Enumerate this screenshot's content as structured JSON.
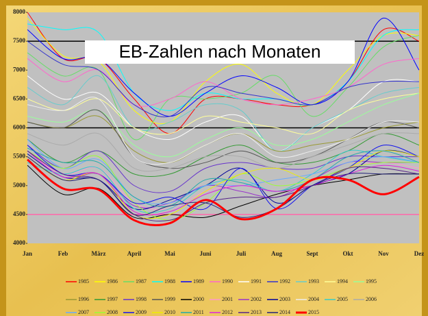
{
  "chart_data": {
    "type": "line",
    "title": "EB-Zahlen nach Monaten",
    "categories": [
      "Jan",
      "Feb",
      "März",
      "April",
      "Mai",
      "Juni",
      "Juli",
      "Aug",
      "Sept",
      "Okt",
      "Nov",
      "Dez"
    ],
    "ylim": [
      4000,
      8000
    ],
    "yticks": [
      4000,
      4500,
      5000,
      5500,
      6000,
      6500,
      7000,
      7500,
      8000
    ],
    "reference_lines": [
      {
        "value": 7500,
        "color": "#000000"
      },
      {
        "value": 6000,
        "color": "#000000"
      },
      {
        "value": 4500,
        "color": "#ff66aa"
      }
    ],
    "series": [
      {
        "name": "1985",
        "color": "#ff0000",
        "values": [
          8000,
          7200,
          7200,
          6500,
          5900,
          6500,
          6500,
          6400,
          6400,
          6800,
          7700,
          7500
        ]
      },
      {
        "name": "1986",
        "color": "#ffff00",
        "values": [
          7900,
          7250,
          7150,
          6300,
          6100,
          6800,
          7100,
          6600,
          6400,
          7000,
          7600,
          7600
        ]
      },
      {
        "name": "1987",
        "color": "#66dd66",
        "values": [
          7300,
          6900,
          7000,
          5800,
          6500,
          6500,
          6600,
          6900,
          6200,
          6700,
          7400,
          7600
        ]
      },
      {
        "name": "1988",
        "color": "#00ffff",
        "values": [
          7800,
          7700,
          7650,
          6600,
          6300,
          6600,
          6500,
          6500,
          6400,
          6800,
          7600,
          7700
        ]
      },
      {
        "name": "1989",
        "color": "#0000ff",
        "values": [
          7700,
          7200,
          7200,
          6600,
          6200,
          6600,
          6900,
          6700,
          6400,
          6800,
          7900,
          7000
        ]
      },
      {
        "name": "1990",
        "color": "#ff66cc",
        "values": [
          7200,
          6800,
          7000,
          6400,
          6500,
          6800,
          6500,
          6400,
          6500,
          6700,
          7100,
          7200
        ]
      },
      {
        "name": "1991",
        "color": "#ffffff",
        "values": [
          6900,
          6500,
          6600,
          6000,
          5800,
          6100,
          6200,
          5600,
          6000,
          6300,
          6800,
          6800
        ]
      },
      {
        "name": "1992",
        "color": "#3333cc",
        "values": [
          7500,
          7100,
          7000,
          6400,
          6200,
          6700,
          6600,
          6500,
          6400,
          6700,
          6800,
          6800
        ]
      },
      {
        "name": "1993",
        "color": "#66cccc",
        "values": [
          6700,
          6400,
          6900,
          6000,
          6100,
          6400,
          6300,
          5600,
          6000,
          6300,
          6600,
          6700
        ]
      },
      {
        "name": "1994",
        "color": "#ffff99",
        "values": [
          6500,
          6300,
          6500,
          6000,
          5900,
          6200,
          6100,
          6000,
          5900,
          6300,
          6500,
          6600
        ]
      },
      {
        "name": "1995",
        "color": "#99ff99",
        "values": [
          6200,
          6100,
          6300,
          5700,
          5500,
          5800,
          6000,
          5700,
          5800,
          6100,
          6400,
          6600
        ]
      },
      {
        "name": "1996",
        "color": "#999933",
        "values": [
          6100,
          6000,
          6200,
          5600,
          5400,
          5700,
          5900,
          5600,
          5700,
          5800,
          6000,
          6100
        ]
      },
      {
        "name": "1997",
        "color": "#339933",
        "values": [
          5800,
          5400,
          5600,
          5200,
          5200,
          5500,
          5700,
          5400,
          5400,
          5600,
          5900,
          5700
        ]
      },
      {
        "name": "1998",
        "color": "#6633cc",
        "values": [
          5700,
          5300,
          5600,
          5000,
          4900,
          5300,
          5400,
          5300,
          5300,
          5500,
          5500,
          5500
        ]
      },
      {
        "name": "1999",
        "color": "#555555",
        "values": [
          6100,
          6000,
          6300,
          5500,
          5300,
          5400,
          5600,
          5400,
          5500,
          5800,
          6100,
          6000
        ]
      },
      {
        "name": "2000",
        "color": "#000000",
        "values": [
          5350,
          4850,
          4950,
          4450,
          4500,
          4450,
          4650,
          4850,
          5000,
          5100,
          5200,
          5200
        ]
      },
      {
        "name": "2001",
        "color": "#ff99cc",
        "values": [
          5600,
          5200,
          5300,
          4700,
          4600,
          4900,
          5000,
          4900,
          5000,
          5300,
          5400,
          5300
        ]
      },
      {
        "name": "2002",
        "color": "#9933cc",
        "values": [
          5500,
          5100,
          5200,
          4650,
          4700,
          5000,
          4900,
          4800,
          5100,
          5400,
          5400,
          5400
        ]
      },
      {
        "name": "2003",
        "color": "#000099",
        "values": [
          5550,
          5150,
          5100,
          4600,
          4750,
          5000,
          5300,
          4700,
          5000,
          5200,
          5600,
          5500
        ]
      },
      {
        "name": "2004",
        "color": "#eeeeee",
        "values": [
          6400,
          6300,
          6500,
          5500,
          5400,
          5700,
          5900,
          5500,
          5600,
          5800,
          6100,
          6100
        ]
      },
      {
        "name": "2005",
        "color": "#33cccc",
        "values": [
          5400,
          5200,
          5300,
          4600,
          4600,
          5000,
          5100,
          4900,
          5200,
          5600,
          5500,
          5400
        ]
      },
      {
        "name": "2006",
        "color": "#aaaaaa",
        "values": [
          5900,
          5700,
          5900,
          5300,
          5300,
          5500,
          5500,
          5300,
          5500,
          5700,
          5900,
          5900
        ]
      },
      {
        "name": "2007",
        "color": "#66aaff",
        "values": [
          5800,
          5300,
          5450,
          4800,
          4700,
          5000,
          5000,
          5100,
          5200,
          5400,
          5500,
          5400
        ]
      },
      {
        "name": "2008",
        "color": "#99ff33",
        "values": [
          5600,
          5300,
          5500,
          4700,
          4400,
          4700,
          5200,
          5000,
          5100,
          5300,
          5400,
          5400
        ]
      },
      {
        "name": "2009",
        "color": "#1111ee",
        "values": [
          5700,
          5200,
          5200,
          4700,
          4800,
          4600,
          5300,
          4600,
          5000,
          5300,
          5700,
          5500
        ]
      },
      {
        "name": "2010",
        "color": "#eeee00",
        "values": [
          5500,
          5100,
          5200,
          4500,
          4500,
          4900,
          5200,
          5300,
          5100,
          5300,
          5600,
          5500
        ]
      },
      {
        "name": "2011",
        "color": "#22aaaa",
        "values": [
          5650,
          5400,
          5400,
          4800,
          4650,
          5100,
          5050,
          4900,
          5100,
          5500,
          5600,
          5400
        ]
      },
      {
        "name": "2012",
        "color": "#dd22dd",
        "values": [
          5600,
          5150,
          5200,
          4550,
          4550,
          4850,
          5000,
          4900,
          5000,
          5200,
          5350,
          5250
        ]
      },
      {
        "name": "2013",
        "color": "#552288",
        "values": [
          5600,
          5200,
          5100,
          4500,
          4400,
          4700,
          4800,
          4800,
          5000,
          5300,
          5300,
          5200
        ]
      },
      {
        "name": "2014",
        "color": "#222277",
        "values": [
          5500,
          5100,
          5100,
          4500,
          4650,
          4700,
          4450,
          4600,
          5000,
          5200,
          5200,
          5200
        ]
      },
      {
        "name": "2015",
        "color": "#ff0000",
        "line_width": 3,
        "values": [
          5450,
          4950,
          4930,
          4400,
          4350,
          4750,
          4420,
          4600,
          5100,
          5100,
          4850,
          5150
        ]
      }
    ]
  }
}
